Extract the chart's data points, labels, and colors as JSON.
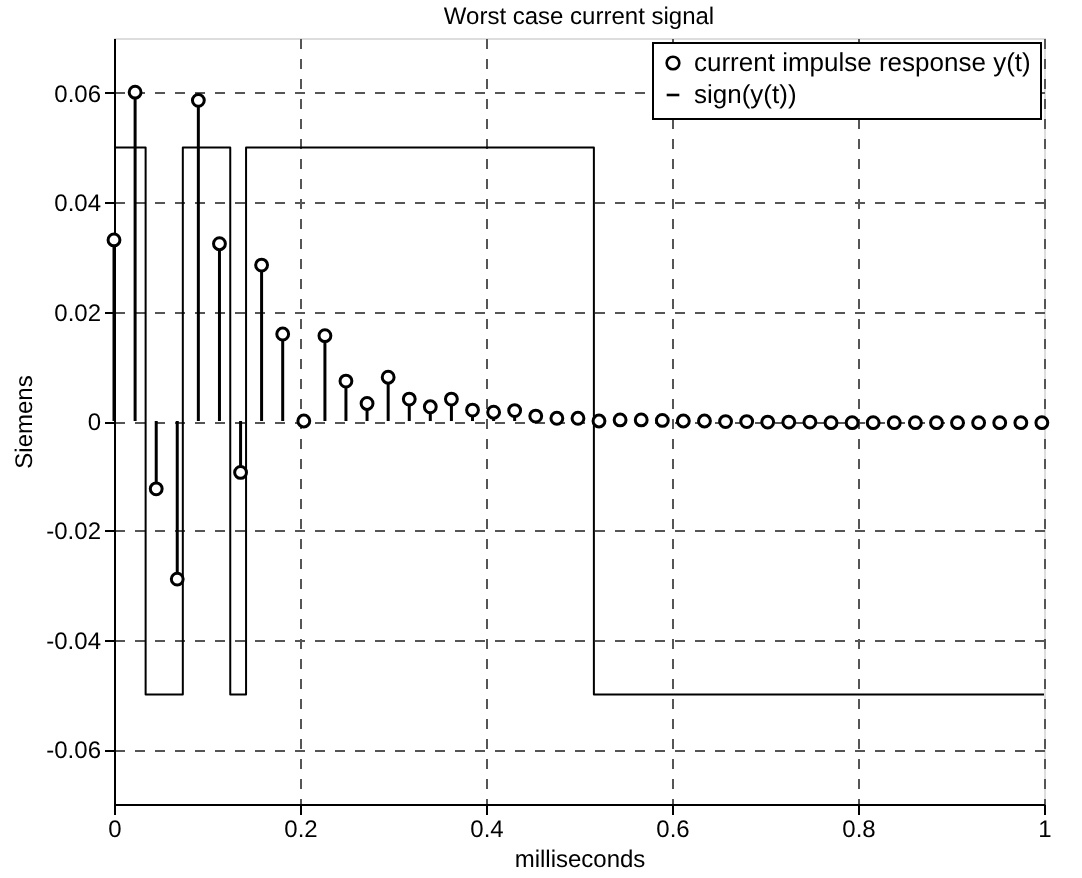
{
  "chart_data": {
    "type": "lollipop",
    "title": "Worst case current signal",
    "xlabel": "milliseconds",
    "ylabel": "Siemens",
    "xlim": [
      0,
      1
    ],
    "xticks": [
      0,
      0.2,
      0.4,
      0.6,
      0.8,
      1
    ],
    "ylim": [
      -0.07,
      0.07
    ],
    "yticks": [
      -0.06,
      -0.04,
      -0.02,
      0,
      0.02,
      0.04,
      0.06
    ],
    "grid": true,
    "legend": "top right",
    "series": [
      {
        "name": "current impulse response y(t)",
        "marker": "circle",
        "color": "#000000",
        "x": [
          0,
          0.0227,
          0.0454,
          0.068,
          0.0907,
          0.1134,
          0.1361,
          0.1587,
          0.1814,
          0.2041,
          0.2268,
          0.2494,
          0.2721,
          0.2948,
          0.3175,
          0.3401,
          0.3628,
          0.3855,
          0.4082,
          0.4308,
          0.4535,
          0.4762,
          0.4989,
          0.5215,
          0.5442,
          0.5669,
          0.5896,
          0.6122,
          0.6349,
          0.6576,
          0.6803,
          0.7029,
          0.7256,
          0.7483,
          0.771,
          0.7937,
          0.8163,
          0.839,
          0.8617,
          0.8844,
          0.907,
          0.9297,
          0.9524,
          0.9751,
          0.9977
        ],
        "values": [
          0.0331,
          0.0601,
          -0.0124,
          -0.0289,
          0.0586,
          0.0324,
          -0.0094,
          0.0285,
          0.0159,
          0,
          0.0156,
          0.0073,
          0.0032,
          0.008,
          0.004,
          0.0026,
          0.004,
          0.002,
          0.0016,
          0.0019,
          0.0009,
          0.0005,
          0.0005,
          0,
          0.0002,
          0.0002,
          0.0001,
          0,
          0,
          -0.0001,
          -0.0001,
          -0.0002,
          -0.0002,
          -0.0002,
          -0.0003,
          -0.0003,
          -0.0003,
          -0.0003,
          -0.0003,
          -0.0003,
          -0.0003,
          -0.0003,
          -0.0003,
          -0.0003,
          -0.0003
        ]
      },
      {
        "name": "sign(y(t))",
        "type": "step",
        "color": "#000000",
        "x": [
          0,
          0.034,
          0.074,
          0.125,
          0.142,
          0.516,
          1
        ],
        "values": [
          0.05,
          -0.05,
          0.05,
          -0.05,
          0.05,
          -0.05,
          -0.05
        ]
      }
    ]
  }
}
